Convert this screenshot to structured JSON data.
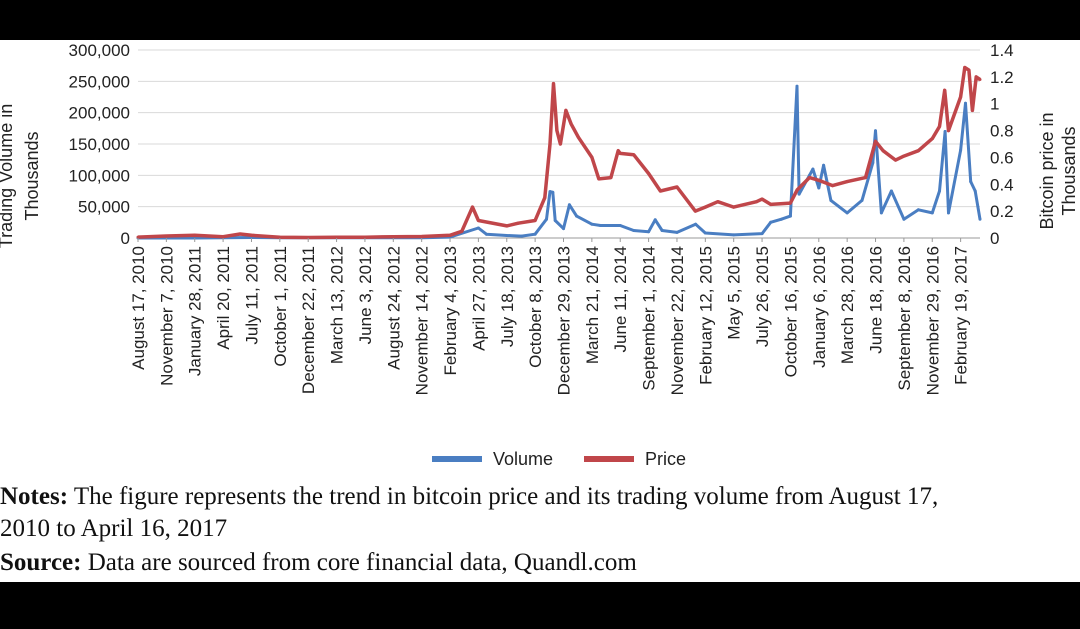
{
  "chart_data": {
    "type": "line",
    "xlabel": "",
    "y_left_label_line1": "Trading Volume in",
    "y_left_label_line2": "Thousands",
    "y_right_label_line1": "Bitcoin price in",
    "y_right_label_line2": "Thousands",
    "ylim_left": [
      0,
      300000
    ],
    "ylim_right": [
      0,
      1.4
    ],
    "yticks_left": [
      "300,000",
      "250,000",
      "200,000",
      "150,000",
      "100,000",
      "50,000",
      "0"
    ],
    "yticks_right": [
      "1.4",
      "1.2",
      "1",
      "0.8",
      "0.6",
      "0.4",
      "0.2",
      "0"
    ],
    "x_tick_labels": [
      "August 17, 2010",
      "November 7, 2010",
      "January 28, 2011",
      "April 20, 2011",
      "July 11, 2011",
      "October 1, 2011",
      "December 22, 2011",
      "March 13, 2012",
      "June 3, 2012",
      "August 24, 2012",
      "November 14, 2012",
      "February 4, 2013",
      "April 27, 2013",
      "July 18, 2013",
      "October 8, 2013",
      "December 29, 2013",
      "March 21, 2014",
      "June 11, 2014",
      "September 1, 2014",
      "November 22, 2014",
      "February 12, 2015",
      "May 5, 2015",
      "July 26, 2015",
      "October 16, 2015",
      "January 6, 2016",
      "March 28, 2016",
      "June 18, 2016",
      "September 8, 2016",
      "November 29, 2016",
      "February 19, 2017"
    ],
    "grid": "horizontal",
    "legend_position": "bottom",
    "series": [
      {
        "name": "Volume",
        "axis": "left",
        "color": "#4a7ec2",
        "points": [
          [
            "August 17, 2010",
            0
          ],
          [
            "November 7, 2010",
            0
          ],
          [
            "January 28, 2011",
            0
          ],
          [
            "April 20, 2011",
            300
          ],
          [
            "July 11, 2011",
            800
          ],
          [
            "October 1, 2011",
            500
          ],
          [
            "December 22, 2011",
            300
          ],
          [
            "March 13, 2012",
            300
          ],
          [
            "June 3, 2012",
            300
          ],
          [
            "August 24, 2012",
            500
          ],
          [
            "November 14, 2012",
            500
          ],
          [
            "February 4, 2013",
            1500
          ],
          [
            "April 27, 2013",
            16000
          ],
          [
            "May 20, 2013",
            6000
          ],
          [
            "July 18, 2013",
            4000
          ],
          [
            "August 30, 2013",
            3000
          ],
          [
            "October 8, 2013",
            6000
          ],
          [
            "November 10, 2013",
            30000
          ],
          [
            "November 20, 2013",
            74000
          ],
          [
            "November 28, 2013",
            73000
          ],
          [
            "December 5, 2013",
            28000
          ],
          [
            "December 29, 2013",
            15000
          ],
          [
            "January 15, 2014",
            53000
          ],
          [
            "February 5, 2014",
            35000
          ],
          [
            "March 21, 2014",
            22000
          ],
          [
            "April 15, 2014",
            20000
          ],
          [
            "June 11, 2014",
            20000
          ],
          [
            "July 20, 2014",
            12000
          ],
          [
            "September 1, 2014",
            10000
          ],
          [
            "September 20, 2014",
            29000
          ],
          [
            "October 10, 2014",
            12000
          ],
          [
            "November 22, 2014",
            9000
          ],
          [
            "January 15, 2015",
            22000
          ],
          [
            "February 12, 2015",
            8000
          ],
          [
            "May 5, 2015",
            5000
          ],
          [
            "July 26, 2015",
            7000
          ],
          [
            "August 20, 2015",
            25000
          ],
          [
            "September 20, 2015",
            30000
          ],
          [
            "October 16, 2015",
            35000
          ],
          [
            "November 4, 2015",
            242000
          ],
          [
            "November 10, 2015",
            70000
          ],
          [
            "December 10, 2015",
            100000
          ],
          [
            "December 20, 2015",
            110000
          ],
          [
            "January 6, 2016",
            80000
          ],
          [
            "January 20, 2016",
            116000
          ],
          [
            "February 10, 2016",
            60000
          ],
          [
            "March 28, 2016",
            40000
          ],
          [
            "May 10, 2016",
            60000
          ],
          [
            "June 10, 2016",
            120000
          ],
          [
            "June 18, 2016",
            171000
          ],
          [
            "July 5, 2016",
            40000
          ],
          [
            "August 3, 2016",
            75000
          ],
          [
            "September 8, 2016",
            30000
          ],
          [
            "October 20, 2016",
            45000
          ],
          [
            "November 29, 2016",
            40000
          ],
          [
            "December 20, 2016",
            75000
          ],
          [
            "January 5, 2017",
            170000
          ],
          [
            "January 15, 2017",
            40000
          ],
          [
            "February 19, 2017",
            140000
          ],
          [
            "March 5, 2017",
            215000
          ],
          [
            "March 20, 2017",
            90000
          ],
          [
            "April 2, 2017",
            75000
          ],
          [
            "April 16, 2017",
            30000
          ]
        ]
      },
      {
        "name": "Price",
        "axis": "right",
        "color": "#c0464a",
        "points": [
          [
            "August 17, 2010",
            0.007
          ],
          [
            "November 7, 2010",
            0.015
          ],
          [
            "January 28, 2011",
            0.02
          ],
          [
            "April 20, 2011",
            0.01
          ],
          [
            "June 8, 2011",
            0.03
          ],
          [
            "July 11, 2011",
            0.02
          ],
          [
            "October 1, 2011",
            0.005
          ],
          [
            "December 22, 2011",
            0.004
          ],
          [
            "March 13, 2012",
            0.005
          ],
          [
            "June 3, 2012",
            0.006
          ],
          [
            "August 24, 2012",
            0.01
          ],
          [
            "November 14, 2012",
            0.011
          ],
          [
            "February 4, 2013",
            0.02
          ],
          [
            "March 10, 2013",
            0.05
          ],
          [
            "April 10, 2013",
            0.23
          ],
          [
            "April 27, 2013",
            0.13
          ],
          [
            "July 18, 2013",
            0.09
          ],
          [
            "August 20, 2013",
            0.11
          ],
          [
            "October 8, 2013",
            0.13
          ],
          [
            "November 5, 2013",
            0.3
          ],
          [
            "November 20, 2013",
            0.7
          ],
          [
            "November 30, 2013",
            1.15
          ],
          [
            "December 10, 2013",
            0.8
          ],
          [
            "December 20, 2013",
            0.7
          ],
          [
            "January 5, 2014",
            0.95
          ],
          [
            "January 20, 2014",
            0.85
          ],
          [
            "February 10, 2014",
            0.75
          ],
          [
            "March 21, 2014",
            0.6
          ],
          [
            "April 10, 2014",
            0.44
          ],
          [
            "May 15, 2014",
            0.45
          ],
          [
            "June 5, 2014",
            0.65
          ],
          [
            "June 11, 2014",
            0.63
          ],
          [
            "July 20, 2014",
            0.62
          ],
          [
            "September 1, 2014",
            0.48
          ],
          [
            "October 5, 2014",
            0.35
          ],
          [
            "November 22, 2014",
            0.38
          ],
          [
            "January 14, 2015",
            0.2
          ],
          [
            "February 12, 2015",
            0.23
          ],
          [
            "March 20, 2015",
            0.27
          ],
          [
            "May 5, 2015",
            0.23
          ],
          [
            "July 10, 2015",
            0.27
          ],
          [
            "July 26, 2015",
            0.29
          ],
          [
            "August 20, 2015",
            0.25
          ],
          [
            "October 16, 2015",
            0.26
          ],
          [
            "November 5, 2015",
            0.36
          ],
          [
            "December 10, 2015",
            0.45
          ],
          [
            "January 6, 2016",
            0.43
          ],
          [
            "February 15, 2016",
            0.39
          ],
          [
            "March 28, 2016",
            0.42
          ],
          [
            "May 20, 2016",
            0.45
          ],
          [
            "June 18, 2016",
            0.72
          ],
          [
            "July 10, 2016",
            0.65
          ],
          [
            "August 15, 2016",
            0.58
          ],
          [
            "September 8, 2016",
            0.61
          ],
          [
            "October 20, 2016",
            0.65
          ],
          [
            "November 29, 2016",
            0.74
          ],
          [
            "December 20, 2016",
            0.83
          ],
          [
            "January 4, 2017",
            1.1
          ],
          [
            "January 15, 2017",
            0.8
          ],
          [
            "February 19, 2017",
            1.05
          ],
          [
            "March 3, 2017",
            1.27
          ],
          [
            "March 15, 2017",
            1.25
          ],
          [
            "March 25, 2017",
            0.95
          ],
          [
            "April 5, 2017",
            1.2
          ],
          [
            "April 16, 2017",
            1.18
          ]
        ]
      }
    ]
  },
  "notes": {
    "label": "Notes:",
    "line1": " The figure represents the trend in bitcoin price and its trading volume from August 17,",
    "line2": "2010 to April 16, 2017"
  },
  "source": {
    "label": "Source:",
    "text": " Data are sourced from core financial data, Quandl.com"
  }
}
